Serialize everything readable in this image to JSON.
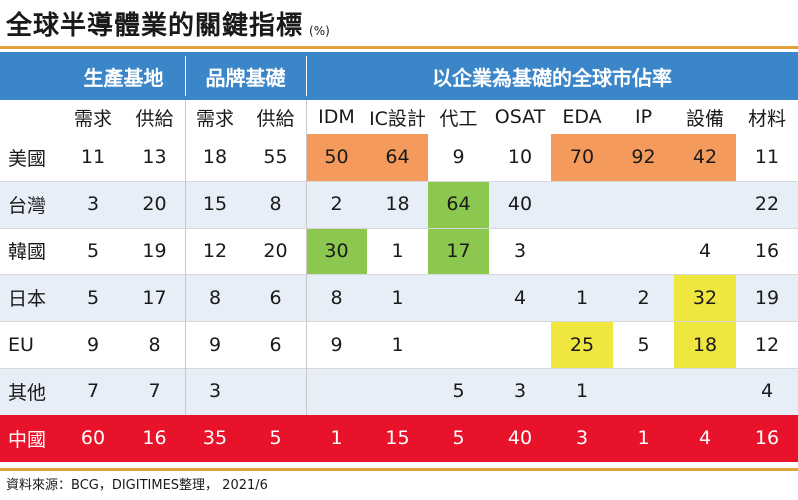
{
  "title": "全球半導體業的關鍵指標",
  "unit": "(%)",
  "source": "資料來源：BCG，DIGITIMES整理， 2021/6",
  "colors": {
    "header_blue": "#3b86c8",
    "orange": "#f39a5c",
    "green": "#8cc850",
    "yellow": "#f0e640",
    "china_red": "#e8132a",
    "band": "#e8eef7",
    "rule": "#e0a23b"
  },
  "chart_data": {
    "type": "table",
    "groups": [
      "生產基地",
      "品牌基礎",
      "以企業為基礎的全球市佔率"
    ],
    "columns": [
      "需求",
      "供給",
      "需求",
      "供給",
      "IDM",
      "IC設計",
      "代工",
      "OSAT",
      "EDA",
      "IP",
      "設備",
      "材料"
    ],
    "rows": [
      {
        "label": "美國",
        "values": [
          "11",
          "13",
          "18",
          "55",
          "50",
          "64",
          "9",
          "10",
          "70",
          "92",
          "42",
          "11"
        ],
        "highlight": [
          "",
          "",
          "",
          "",
          "orange",
          "orange",
          "",
          "",
          "orange",
          "orange",
          "orange",
          ""
        ]
      },
      {
        "label": "台灣",
        "values": [
          "3",
          "20",
          "15",
          "8",
          "2",
          "18",
          "64",
          "40",
          "",
          "",
          "",
          "22"
        ],
        "highlight": [
          "",
          "",
          "",
          "",
          "",
          "",
          "green",
          "",
          "",
          "",
          "",
          ""
        ]
      },
      {
        "label": "韓國",
        "values": [
          "5",
          "19",
          "12",
          "20",
          "30",
          "1",
          "17",
          "3",
          "",
          "",
          "4",
          "16"
        ],
        "highlight": [
          "",
          "",
          "",
          "",
          "green",
          "",
          "green",
          "",
          "",
          "",
          "",
          ""
        ]
      },
      {
        "label": "日本",
        "values": [
          "5",
          "17",
          "8",
          "6",
          "8",
          "1",
          "",
          "4",
          "1",
          "2",
          "32",
          "19"
        ],
        "highlight": [
          "",
          "",
          "",
          "",
          "",
          "",
          "",
          "",
          "",
          "",
          "yellow",
          ""
        ]
      },
      {
        "label": "EU",
        "values": [
          "9",
          "8",
          "9",
          "6",
          "9",
          "1",
          "",
          "",
          "25",
          "5",
          "18",
          "12"
        ],
        "highlight": [
          "",
          "",
          "",
          "",
          "",
          "",
          "",
          "",
          "yellow",
          "",
          "yellow",
          ""
        ]
      },
      {
        "label": "其他",
        "values": [
          "7",
          "7",
          "3",
          "",
          "",
          "",
          "5",
          "3",
          "1",
          "",
          "",
          "4"
        ],
        "highlight": [
          "",
          "",
          "",
          "",
          "",
          "",
          "",
          "",
          "",
          "",
          "",
          ""
        ]
      },
      {
        "label": "中國",
        "values": [
          "60",
          "16",
          "35",
          "5",
          "1",
          "15",
          "5",
          "40",
          "3",
          "1",
          "4",
          "16"
        ],
        "highlight": [
          "china",
          "china",
          "china",
          "china",
          "china",
          "china",
          "china",
          "china",
          "china",
          "china",
          "china",
          "china"
        ]
      }
    ]
  }
}
